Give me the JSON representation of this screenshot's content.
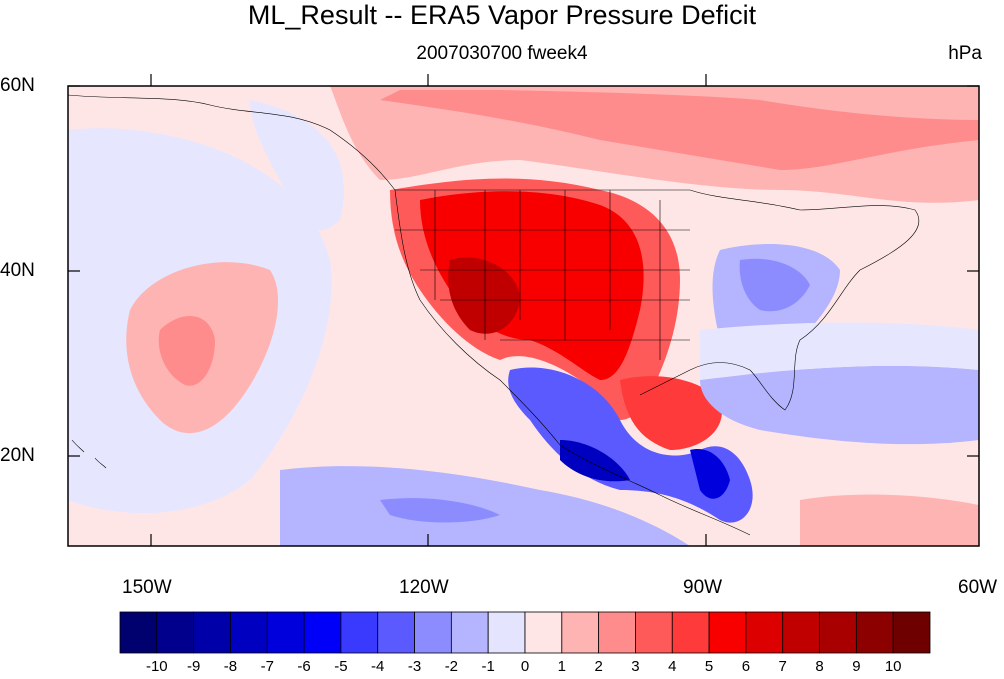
{
  "title": "ML_Result -- ERA5 Vapor Pressure Deficit",
  "subtitle_center": "2007030700 fweek4",
  "subtitle_right": "hPa",
  "lat_labels": [
    "60N",
    "40N",
    "20N"
  ],
  "lon_labels": [
    "150W",
    "120W",
    "90W",
    "60W"
  ],
  "colorbar": {
    "labels": [
      "-10",
      "-9",
      "-8",
      "-7",
      "-6",
      "-5",
      "-4",
      "-3",
      "-2",
      "-1",
      "0",
      "1",
      "2",
      "3",
      "4",
      "5",
      "6",
      "7",
      "8",
      "9",
      "10"
    ],
    "colors": [
      "#00006e",
      "#00008c",
      "#0000a8",
      "#0000c0",
      "#0000dc",
      "#0000f8",
      "#3a3aff",
      "#5a5aff",
      "#8c8cff",
      "#b4b4ff",
      "#e4e4ff",
      "#ffe6e6",
      "#ffb4b4",
      "#ff8c8c",
      "#ff5a5a",
      "#ff3a3a",
      "#f80000",
      "#dc0000",
      "#c00000",
      "#a80000",
      "#8c0000",
      "#6e0000"
    ]
  },
  "colors": {
    "ocean_light_red": "#ffd6d6",
    "pale_blue": "#e6e6ff",
    "medium_blue": "#b4b4ff",
    "strong_red": "#e00000"
  }
}
